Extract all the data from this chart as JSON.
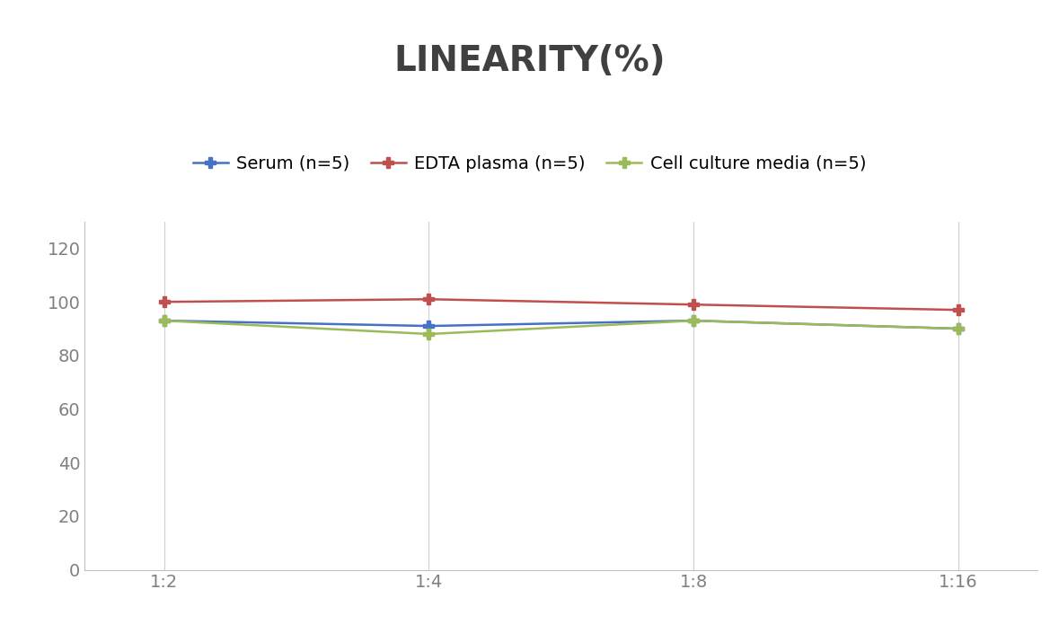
{
  "title": "LINEARITY(%)",
  "x_labels": [
    "1:2",
    "1:4",
    "1:8",
    "1:16"
  ],
  "x_positions": [
    0,
    1,
    2,
    3
  ],
  "series": [
    {
      "label": "Serum (n=5)",
      "values": [
        93,
        91,
        93,
        90
      ],
      "color": "#4472C4",
      "marker": "P",
      "marker_size": 8,
      "linewidth": 1.8
    },
    {
      "label": "EDTA plasma (n=5)",
      "values": [
        100,
        101,
        99,
        97
      ],
      "color": "#C0504D",
      "marker": "P",
      "marker_size": 8,
      "linewidth": 1.8
    },
    {
      "label": "Cell culture media (n=5)",
      "values": [
        93,
        88,
        93,
        90
      ],
      "color": "#9BBB59",
      "marker": "P",
      "marker_size": 8,
      "linewidth": 1.8
    }
  ],
  "ylim": [
    0,
    130
  ],
  "yticks": [
    0,
    20,
    40,
    60,
    80,
    100,
    120
  ],
  "title_fontsize": 28,
  "title_fontweight": "bold",
  "title_color": "#404040",
  "legend_fontsize": 14,
  "tick_fontsize": 14,
  "tick_color": "#808080",
  "background_color": "#ffffff",
  "grid_color": "#d0d0d0",
  "spine_color": "#c0c0c0"
}
